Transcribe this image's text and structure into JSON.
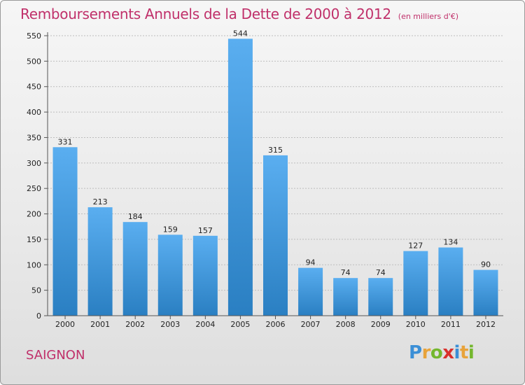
{
  "header": {
    "title": "Remboursements Annuels de la Dette de 2000 à 2012",
    "unit": "(en milliers d'€)"
  },
  "commune": "SAIGNON",
  "logo": {
    "letters": [
      "P",
      "r",
      "o",
      "x",
      "i",
      "t",
      "i"
    ],
    "colors": [
      "#3b8fd6",
      "#e8a33a",
      "#74b72e",
      "#d9302c",
      "#3b8fd6",
      "#e8a33a",
      "#74b72e"
    ]
  },
  "colors": {
    "title": "#c0306a",
    "bar_top": "#5aaef0",
    "bar_bottom": "#2a7fc2",
    "grid": "#bdbdbd"
  },
  "chart_data": {
    "type": "bar",
    "categories": [
      "2000",
      "2001",
      "2002",
      "2003",
      "2004",
      "2005",
      "2006",
      "2007",
      "2008",
      "2009",
      "2010",
      "2011",
      "2012"
    ],
    "values": [
      331,
      213,
      184,
      159,
      157,
      544,
      315,
      94,
      74,
      74,
      127,
      134,
      90
    ],
    "data_labels": [
      "331",
      "213",
      "184",
      "159",
      "157",
      "544",
      "315",
      "94",
      "74",
      "74",
      "127",
      "134",
      "90"
    ],
    "yticks": [
      0,
      50,
      100,
      150,
      200,
      250,
      300,
      350,
      400,
      450,
      500,
      550
    ],
    "ylim": [
      0,
      550
    ],
    "grid": true,
    "title": "Remboursements Annuels de la Dette de 2000 à 2012",
    "xlabel": "",
    "ylabel": ""
  }
}
